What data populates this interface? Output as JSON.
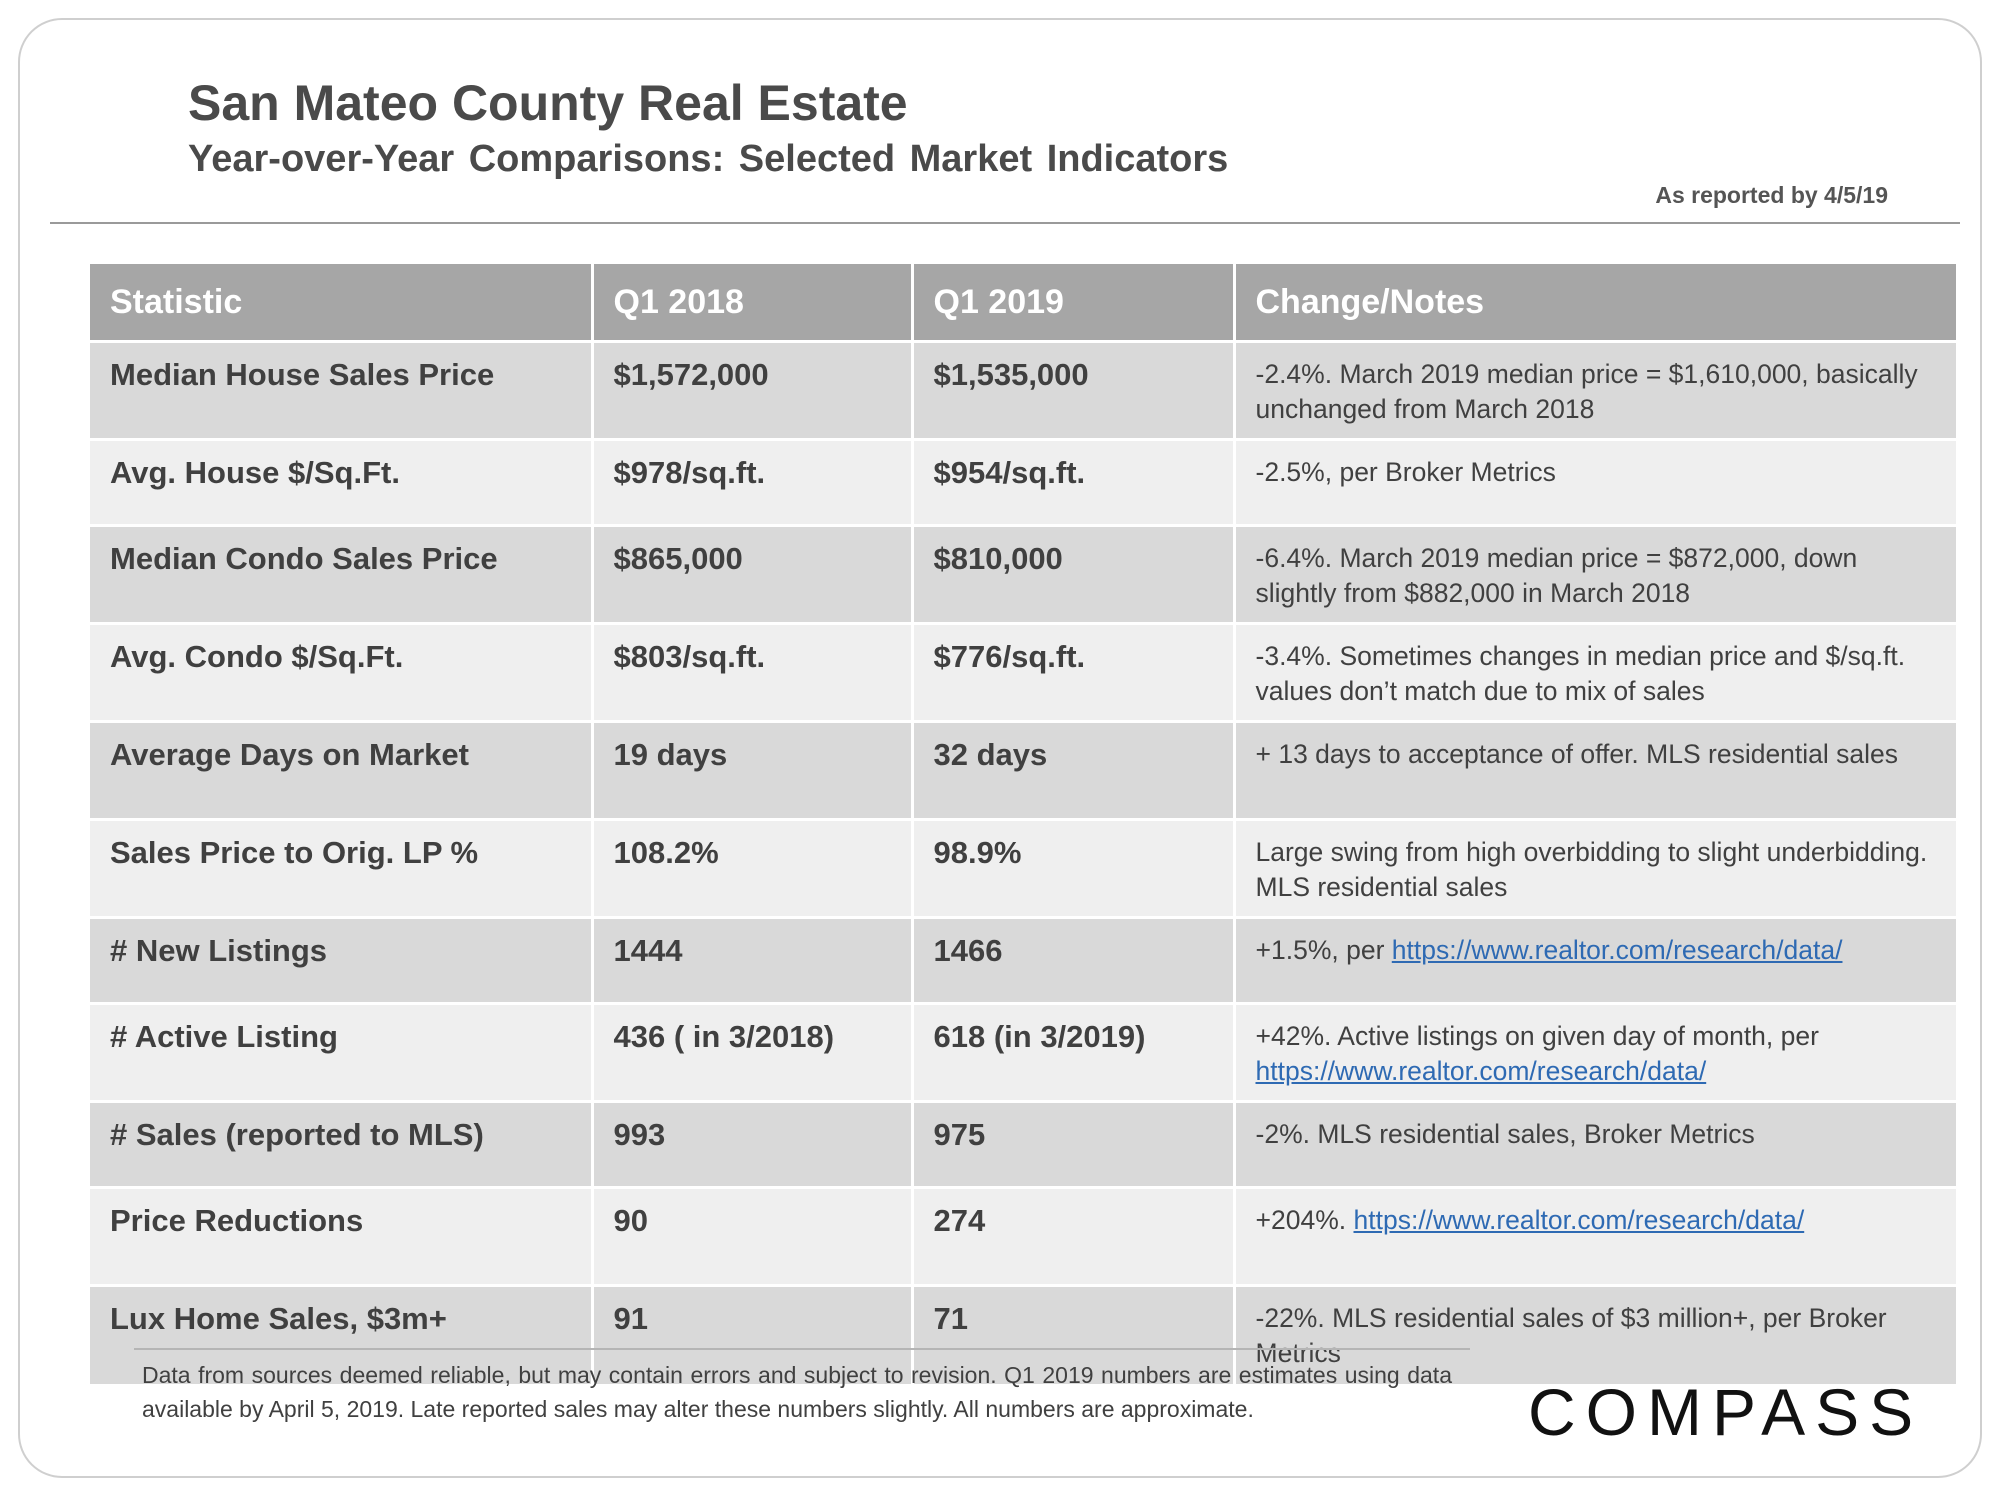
{
  "header": {
    "title": "San Mateo County Real Estate",
    "subtitle": "Year-over-Year  Comparisons:  Selected Market  Indicators",
    "reported": "As reported by 4/5/19"
  },
  "table": {
    "columns": [
      "Statistic",
      "Q1 2018",
      "Q1 2019",
      "Change/Notes"
    ],
    "rows": [
      {
        "stat": "Median House Sales Price",
        "q1_2018": "$1,572,000",
        "q1_2019": "$1,535,000",
        "note": "-2.4%. March 2019  median price = $1,610,000, basically unchanged from March 2018",
        "link": ""
      },
      {
        "stat": "Avg. House $/Sq.Ft.",
        "q1_2018": "$978/sq.ft.",
        "q1_2019": "$954/sq.ft.",
        "note": "-2.5%, per Broker Metrics",
        "link": ""
      },
      {
        "stat": "Median Condo Sales Price",
        "q1_2018": "$865,000",
        "q1_2019": "$810,000",
        "note": "-6.4%. March 2019  median price = $872,000,  down slightly from $882,000  in March 2018",
        "link": ""
      },
      {
        "stat": "Avg. Condo $/Sq.Ft.",
        "q1_2018": "$803/sq.ft.",
        "q1_2019": "$776/sq.ft.",
        "note": "-3.4%. Sometimes changes in median price and $/sq.ft. values don’t match due to mix of sales",
        "link": ""
      },
      {
        "stat": "Average Days on Market",
        "q1_2018": "19 days",
        "q1_2019": "32 days",
        "note": "+ 13 days to acceptance of offer. MLS residential sales",
        "link": ""
      },
      {
        "stat": "Sales Price to Orig. LP %",
        "q1_2018": "108.2%",
        "q1_2019": "98.9%",
        "note": "Large swing from high overbidding to slight underbidding. MLS residential sales",
        "link": ""
      },
      {
        "stat": "# New Listings",
        "q1_2018": "1444",
        "q1_2019": "1466",
        "note": "+1.5%, per",
        "link": "https://www.realtor.com/research/data/"
      },
      {
        "stat": "# Active Listing",
        "q1_2018": "436 ( in 3/2018)",
        "q1_2019": "618 (in 3/2019)",
        "note": "+42%. Active listings on given day of month, per",
        "link": "https://www.realtor.com/research/data/"
      },
      {
        "stat": "# Sales (reported to MLS)",
        "q1_2018": "993",
        "q1_2019": "975",
        "note": "-2%. MLS residential sales, Broker Metrics",
        "link": ""
      },
      {
        "stat": "Price Reductions",
        "q1_2018": "90",
        "q1_2019": "274",
        "note": "+204%.",
        "link": "https://www.realtor.com/research/data/"
      },
      {
        "stat": "Lux Home Sales, $3m+",
        "q1_2018": "91",
        "q1_2019": "71",
        "note": "-22%. MLS residential sales of $3 million+, per Broker Metrics",
        "link": ""
      }
    ]
  },
  "footnote": "Data from sources deemed reliable, but may contain errors and subject to revision. Q1 2019 numbers are estimates using data available by April 5, 2019. Late reported sales may alter these numbers slightly. All numbers are approximate.",
  "logo": "COMPASS",
  "colors": {
    "header_bg": "#a6a6a6",
    "row_dark": "#d9d9d9",
    "row_light": "#efefef",
    "link": "#2e6ab3"
  }
}
